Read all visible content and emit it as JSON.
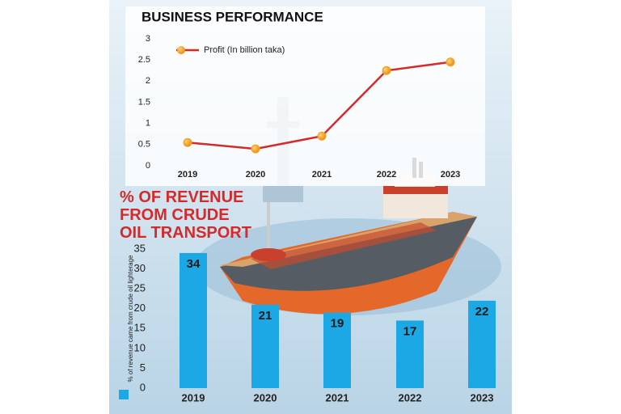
{
  "chart_data": [
    {
      "type": "line",
      "title": "BUSINESS PERFORMANCE",
      "categories": [
        "2019",
        "2020",
        "2021",
        "2022",
        "2023"
      ],
      "series": [
        {
          "name": "Profit (In billion taka)",
          "color": "#d42a2a",
          "marker_color": "#f5a31f",
          "values": [
            0.55,
            0.4,
            0.7,
            2.25,
            2.45
          ]
        }
      ],
      "ylim": [
        0,
        3
      ],
      "yticks": [
        0,
        0.5,
        1,
        1.5,
        2,
        2.5,
        3
      ],
      "legend": "upper left"
    },
    {
      "type": "bar",
      "title": "% OF REVENUE FROM CRUDE OIL TRANSPORT",
      "y_label": "% of revenue came from crude oil lighterage",
      "categories": [
        "2019",
        "2020",
        "2021",
        "2022",
        "2023"
      ],
      "values": [
        34,
        21,
        19,
        17,
        22
      ],
      "color": "#1ba8e4",
      "ylim": [
        0,
        35
      ],
      "yticks": [
        0,
        5,
        10,
        15,
        20,
        25,
        30,
        35
      ]
    }
  ]
}
